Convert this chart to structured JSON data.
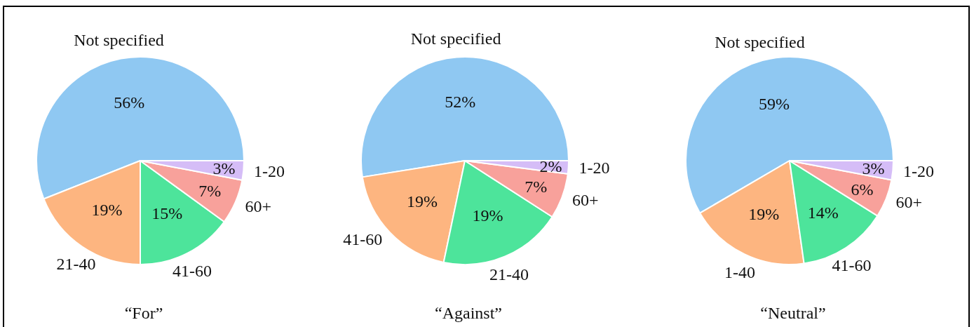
{
  "chart_data": [
    {
      "type": "pie",
      "title": "“For”",
      "categories": [
        "Not specified",
        "21-40",
        "41-60",
        "60+",
        "1-20"
      ],
      "values": [
        56,
        19,
        15,
        7,
        3
      ],
      "colors": [
        "#8fc8f2",
        "#fdb580",
        "#4de49b",
        "#f8a19b",
        "#d5bdf7"
      ],
      "value_labels": [
        "56%",
        "19%",
        "15%",
        "7%",
        "3%"
      ]
    },
    {
      "type": "pie",
      "title": "“Against”",
      "categories": [
        "Not specified",
        "41-60",
        "21-40",
        "60+",
        "1-20"
      ],
      "values": [
        52,
        19,
        19,
        7,
        2
      ],
      "colors": [
        "#8fc8f2",
        "#fdb580",
        "#4de49b",
        "#f8a19b",
        "#d5bdf7"
      ],
      "value_labels": [
        "52%",
        "19%",
        "19%",
        "7%",
        "2%"
      ]
    },
    {
      "type": "pie",
      "title": "“Neutral”",
      "categories": [
        "Not specified",
        "1-40",
        "41-60",
        "60+",
        "1-20"
      ],
      "values": [
        59,
        19,
        14,
        6,
        3
      ],
      "colors": [
        "#8fc8f2",
        "#fdb580",
        "#4de49b",
        "#f8a19b",
        "#d5bdf7"
      ],
      "value_labels": [
        "59%",
        "19%",
        "14%",
        "6%",
        "3%"
      ]
    }
  ]
}
